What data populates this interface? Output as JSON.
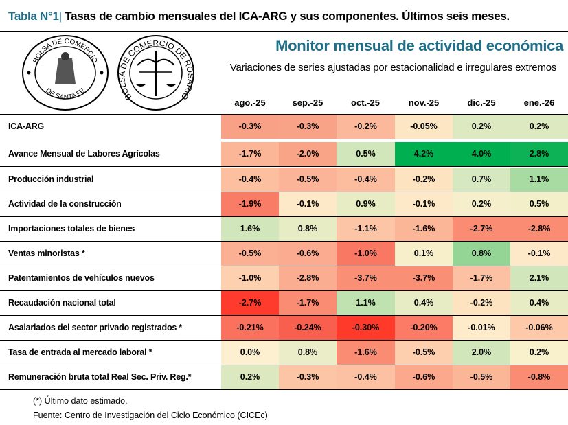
{
  "title": {
    "number": "Tabla N°1",
    "separator": "|",
    "text": "Tasas de cambio mensuales del ICA-ARG y sus componentes. Últimos seis meses."
  },
  "logos": {
    "santa_fe": {
      "top": "BOLSA DE COMERCIO",
      "bottom": "DE SANTA FE"
    },
    "rosario": {
      "ring": "BOLSA DE COMERCIO DE ROSARIO"
    }
  },
  "header": {
    "monitor": "Monitor mensual de actividad económica",
    "subtitle": "Variaciones de series ajustadas por estacionalidad e irregulares extremos"
  },
  "columns": [
    "ago.-25",
    "sep.-25",
    "oct.-25",
    "nov.-25",
    "dic.-25",
    "ene.-26"
  ],
  "rows": [
    {
      "label": "ICA-ARG",
      "values": [
        "-0.3%",
        "-0.3%",
        "-0.2%",
        "-0.05%",
        "0.2%",
        "0.2%"
      ],
      "colors": [
        "#f8a186",
        "#f8a388",
        "#fbb89a",
        "#fde6c4",
        "#dde9c0",
        "#dde9c0"
      ]
    },
    {
      "label": "Avance Mensual de Labores Agrícolas",
      "values": [
        "-1.7%",
        "-2.0%",
        "0.5%",
        "4.2%",
        "4.0%",
        "2.8%"
      ],
      "colors": [
        "#fbb597",
        "#f9a486",
        "#d2e6bc",
        "#00b050",
        "#00b050",
        "#0db256"
      ]
    },
    {
      "label": "Producción industrial",
      "values": [
        "-0.4%",
        "-0.5%",
        "-0.4%",
        "-0.2%",
        "0.7%",
        "1.1%"
      ],
      "colors": [
        "#fcbfa0",
        "#fbb497",
        "#fbbd9e",
        "#fde3c0",
        "#d6e8bf",
        "#a8dba2"
      ]
    },
    {
      "label": "Actividad de la construcción",
      "values": [
        "-1.9%",
        "-0.1%",
        "0.9%",
        "-0.1%",
        "0.2%",
        "0.5%"
      ],
      "colors": [
        "#f97d66",
        "#fde8c8",
        "#e8ecc4",
        "#fde8c8",
        "#f5efcb",
        "#f3efc9"
      ]
    },
    {
      "label": "Importaciones totales de bienes",
      "values": [
        "1.6%",
        "0.8%",
        "-1.1%",
        "-1.6%",
        "-2.7%",
        "-2.8%"
      ],
      "colors": [
        "#d2e6bc",
        "#e8ecc4",
        "#fcc6a6",
        "#fbb597",
        "#f98c72",
        "#f98c72"
      ]
    },
    {
      "label": "Ventas minoristas *",
      "values": [
        "-0.5%",
        "-0.6%",
        "-1.0%",
        "0.1%",
        "0.8%",
        "-0.1%"
      ],
      "colors": [
        "#fbb094",
        "#fbab8f",
        "#f97864",
        "#f6efca",
        "#94d595",
        "#fde8c8"
      ]
    },
    {
      "label": "Patentamientos de vehículos nuevos",
      "values": [
        "-1.0%",
        "-2.8%",
        "-3.7%",
        "-3.7%",
        "-1.7%",
        "2.1%"
      ],
      "colors": [
        "#fdd0b0",
        "#fbad91",
        "#f98f74",
        "#f98f74",
        "#fcc1a2",
        "#d2e6bc"
      ]
    },
    {
      "label": "Recaudación nacional total",
      "values": [
        "-2.7%",
        "-1.7%",
        "1.1%",
        "0.4%",
        "-0.2%",
        "0.4%"
      ],
      "colors": [
        "#ff3b2d",
        "#f98c72",
        "#c0e2b0",
        "#e8ecc4",
        "#fde3c0",
        "#e8ecc4"
      ]
    },
    {
      "label": "Asalariados del sector privado registrados *",
      "values": [
        "-0.21%",
        "-0.24%",
        "-0.30%",
        "-0.20%",
        "-0.01%",
        "-0.06%"
      ],
      "colors": [
        "#fa715d",
        "#f95f4e",
        "#ff3a2a",
        "#fb7b66",
        "#fdebca",
        "#fdc9a9"
      ]
    },
    {
      "label": "Tasa de entrada al mercado laboral *",
      "values": [
        "0.0%",
        "0.8%",
        "-1.6%",
        "-0.5%",
        "2.0%",
        "0.2%"
      ],
      "colors": [
        "#fdf0d0",
        "#ebedc8",
        "#f98c72",
        "#fdcfae",
        "#d2e6bc",
        "#f9f0cc"
      ]
    },
    {
      "label": "Remuneración bruta total Real Sec. Priv. Reg.*",
      "values": [
        "0.2%",
        "-0.3%",
        "-0.4%",
        "-0.6%",
        "-0.5%",
        "-0.8%"
      ],
      "colors": [
        "#dce9c0",
        "#fcc5a5",
        "#fcc1a2",
        "#fba88c",
        "#fbb597",
        "#f98c72"
      ]
    }
  ],
  "footer": {
    "note": "(*) Último dato estimado.",
    "source": "Fuente: Centro de Investigación del Ciclo Económico (CICEc)"
  }
}
